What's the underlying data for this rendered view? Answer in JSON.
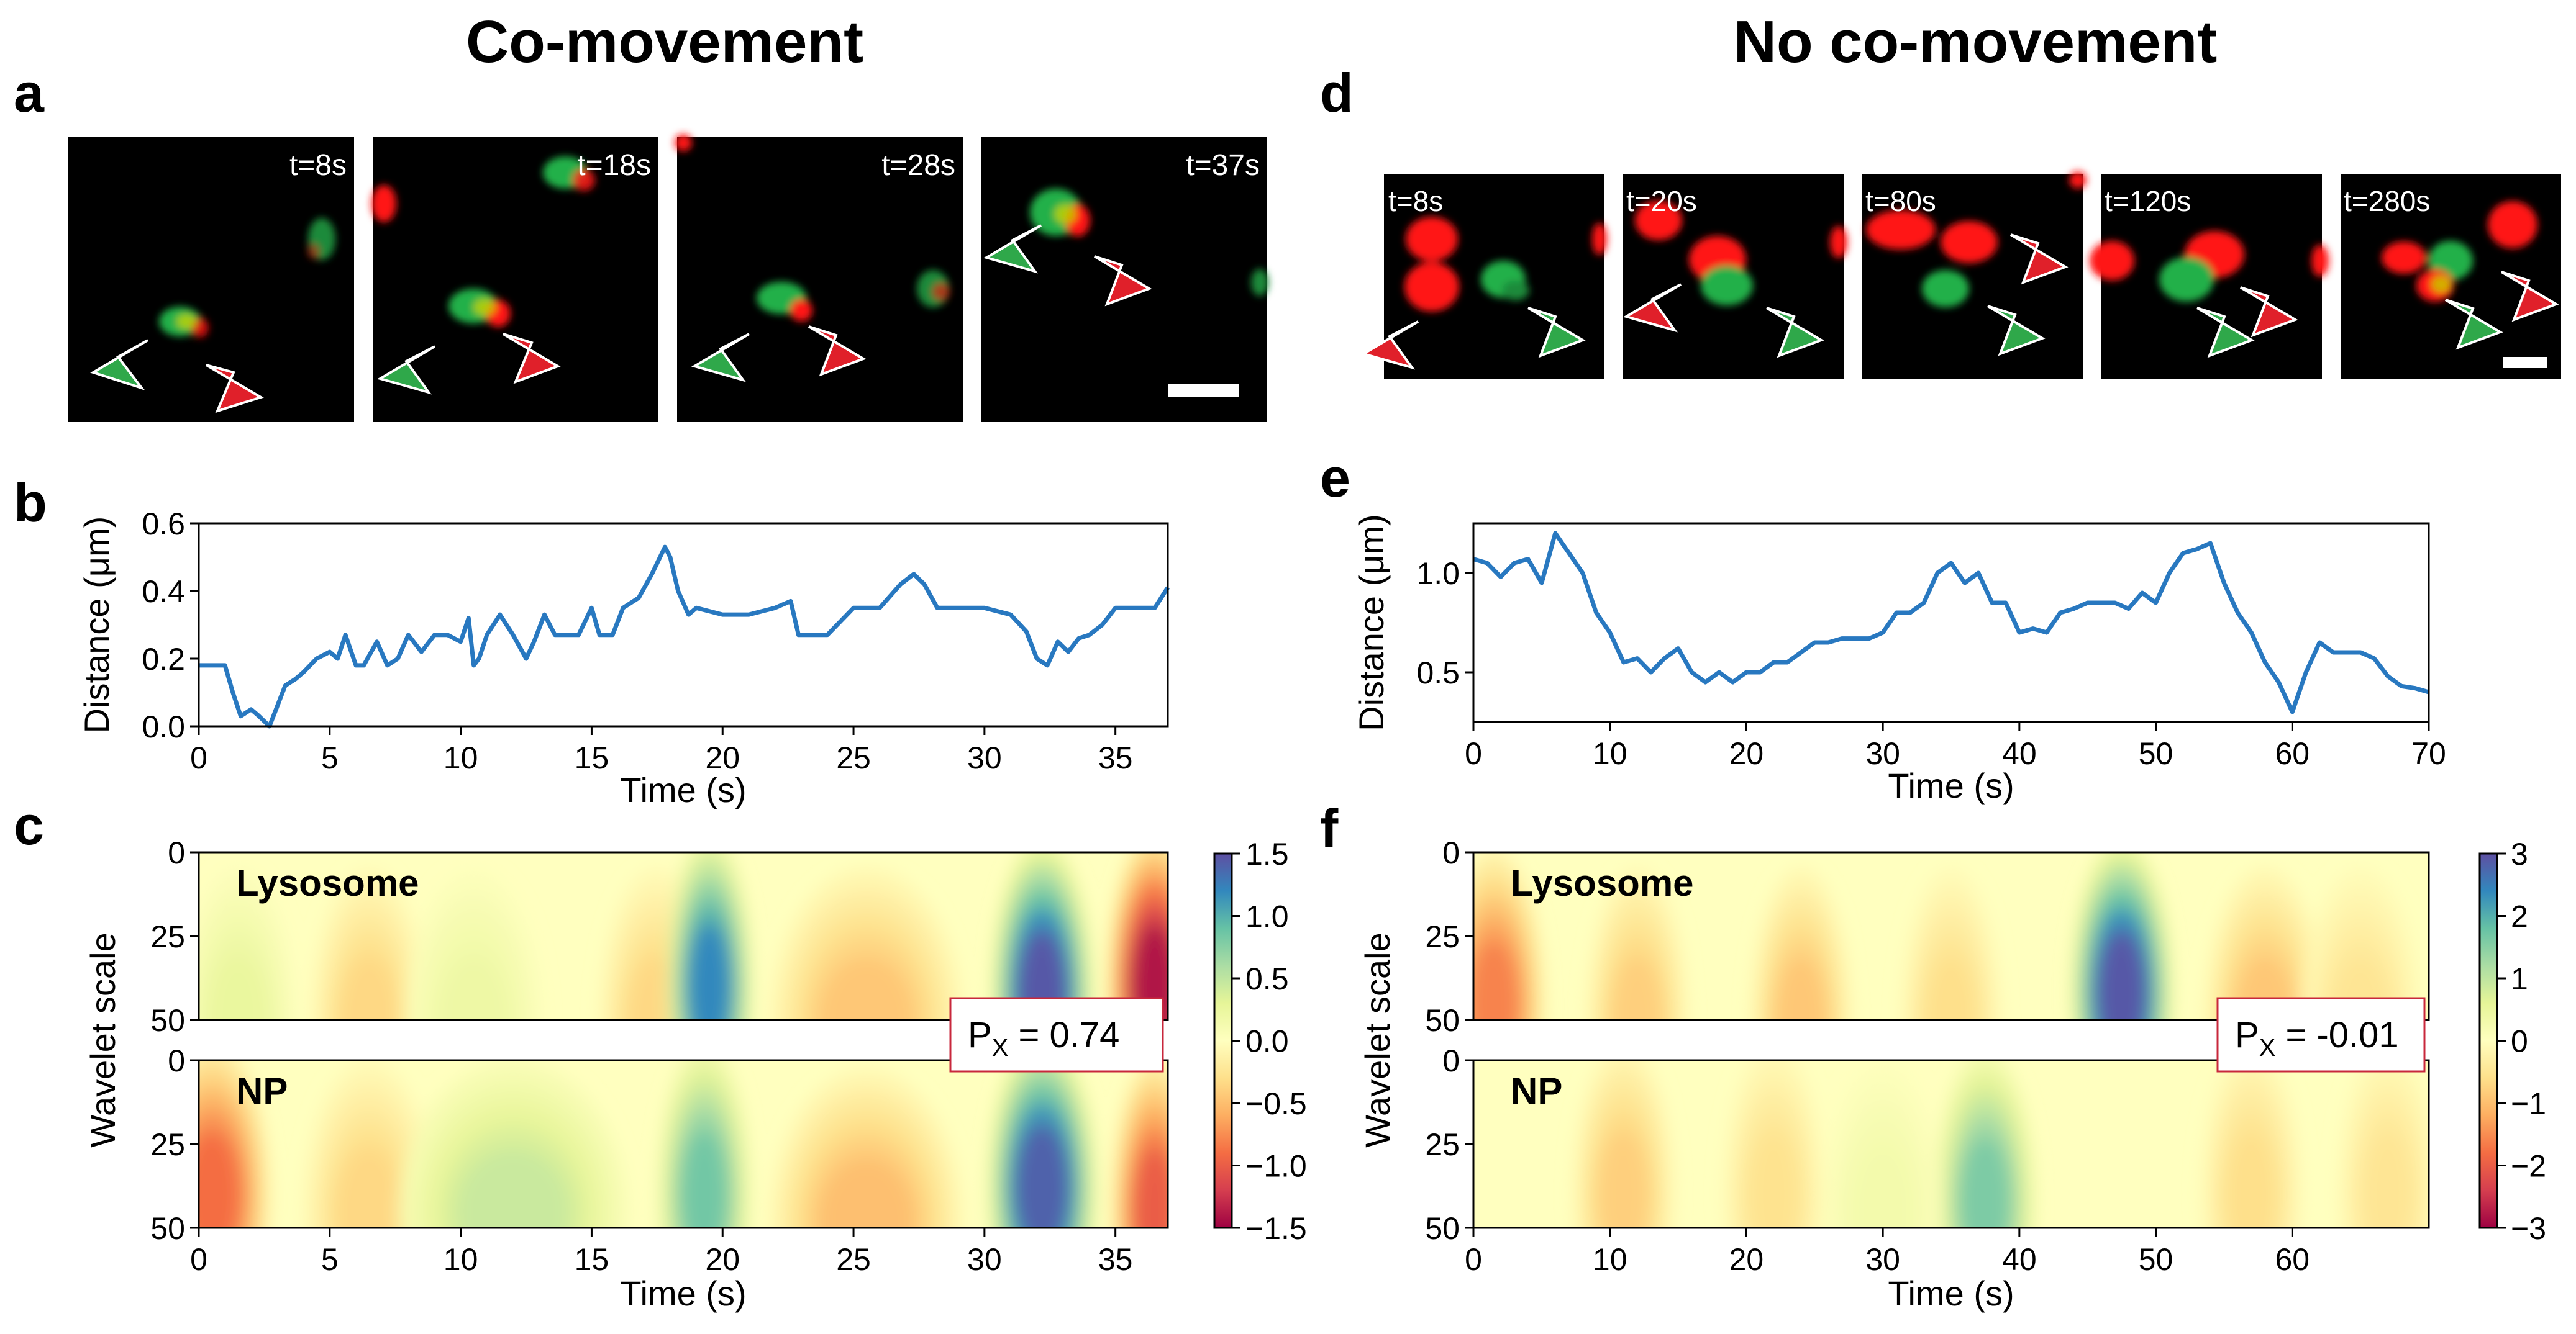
{
  "colors": {
    "line": "#2878c0",
    "green": "#22b04a",
    "red": "#ff1414",
    "micro_bg": "#000000",
    "px_box_border": "#c8283c"
  },
  "titles": {
    "left": "Co-movement",
    "right": "No co-movement"
  },
  "panel_labels": {
    "a": "a",
    "b": "b",
    "c": "c",
    "d": "d",
    "e": "e",
    "f": "f"
  },
  "micrographs": {
    "a": [
      {
        "label": "t=8s"
      },
      {
        "label": "t=18s"
      },
      {
        "label": "t=28s"
      },
      {
        "label": "t=37s"
      }
    ],
    "d": [
      {
        "label": "t=8s"
      },
      {
        "label": "t=20s"
      },
      {
        "label": "t=80s"
      },
      {
        "label": "t=120s"
      },
      {
        "label": "t=280s"
      }
    ]
  },
  "chart_data": [
    {
      "id": "b",
      "type": "line",
      "title": "",
      "xlabel": "Time (s)",
      "ylabel": "Distance (μm)",
      "xlim": [
        0,
        37
      ],
      "ylim": [
        0,
        0.6
      ],
      "xticks": [
        0,
        5,
        10,
        15,
        20,
        25,
        30,
        35
      ],
      "yticks": [
        0.0,
        0.2,
        0.4,
        0.6
      ],
      "ytick_labels": [
        "0.0",
        "0.2",
        "0.4",
        "0.6"
      ],
      "series": [
        {
          "name": "distance",
          "x": [
            0,
            1,
            1.3,
            1.6,
            2,
            2.3,
            2.7,
            3,
            3.3,
            3.7,
            4,
            4.5,
            5,
            5.3,
            5.6,
            6,
            6.3,
            6.8,
            7.2,
            7.6,
            8,
            8.5,
            9,
            9.5,
            10,
            10.3,
            10.5,
            10.7,
            11,
            11.5,
            12,
            12.5,
            12.8,
            13.2,
            13.6,
            14,
            14.5,
            15,
            15.3,
            15.8,
            16.2,
            16.8,
            17.3,
            17.8,
            18,
            18.3,
            18.7,
            19,
            20,
            21,
            22,
            22.6,
            22.9,
            23.3,
            24,
            25,
            26,
            26.8,
            27.3,
            27.7,
            28.2,
            29,
            30,
            31,
            31.6,
            32,
            32.4,
            32.8,
            33.2,
            33.6,
            34,
            34.5,
            35,
            35.5,
            36,
            36.5,
            37
          ],
          "values": [
            0.18,
            0.18,
            0.1,
            0.03,
            0.05,
            0.03,
            0.0,
            0.06,
            0.12,
            0.14,
            0.16,
            0.2,
            0.22,
            0.2,
            0.27,
            0.18,
            0.18,
            0.25,
            0.18,
            0.2,
            0.27,
            0.22,
            0.27,
            0.27,
            0.25,
            0.32,
            0.18,
            0.2,
            0.27,
            0.33,
            0.27,
            0.2,
            0.25,
            0.33,
            0.27,
            0.27,
            0.27,
            0.35,
            0.27,
            0.27,
            0.35,
            0.38,
            0.45,
            0.53,
            0.5,
            0.4,
            0.33,
            0.35,
            0.33,
            0.33,
            0.35,
            0.37,
            0.27,
            0.27,
            0.27,
            0.35,
            0.35,
            0.42,
            0.45,
            0.42,
            0.35,
            0.35,
            0.35,
            0.33,
            0.28,
            0.2,
            0.18,
            0.25,
            0.22,
            0.26,
            0.27,
            0.3,
            0.35,
            0.35,
            0.35,
            0.35,
            0.41
          ]
        }
      ]
    },
    {
      "id": "e",
      "type": "line",
      "title": "",
      "xlabel": "Time (s)",
      "ylabel": "Distance (μm)",
      "xlim": [
        0,
        70
      ],
      "ylim": [
        0.25,
        1.25
      ],
      "xticks": [
        0,
        10,
        20,
        30,
        40,
        50,
        60,
        70
      ],
      "yticks": [
        0.5,
        1.0
      ],
      "ytick_labels": [
        "0.5",
        "1.0"
      ],
      "series": [
        {
          "name": "distance",
          "x": [
            0,
            1,
            2,
            3,
            4,
            5,
            6,
            7,
            8,
            9,
            10,
            11,
            12,
            13,
            14,
            15,
            16,
            17,
            18,
            19,
            20,
            21,
            22,
            23,
            24,
            25,
            26,
            27,
            28,
            29,
            30,
            31,
            32,
            33,
            34,
            35,
            36,
            37,
            38,
            39,
            40,
            41,
            42,
            43,
            44,
            45,
            46,
            47,
            48,
            49,
            50,
            51,
            52,
            53,
            54,
            55,
            56,
            57,
            58,
            59,
            60,
            61,
            62,
            63,
            64,
            65,
            66,
            67,
            68,
            69,
            70
          ],
          "values": [
            1.07,
            1.05,
            0.98,
            1.05,
            1.07,
            0.95,
            1.2,
            1.1,
            1.0,
            0.8,
            0.7,
            0.55,
            0.57,
            0.5,
            0.57,
            0.62,
            0.5,
            0.45,
            0.5,
            0.45,
            0.5,
            0.5,
            0.55,
            0.55,
            0.6,
            0.65,
            0.65,
            0.67,
            0.67,
            0.67,
            0.7,
            0.8,
            0.8,
            0.85,
            1.0,
            1.05,
            0.95,
            1.0,
            0.85,
            0.85,
            0.7,
            0.72,
            0.7,
            0.8,
            0.82,
            0.85,
            0.85,
            0.85,
            0.82,
            0.9,
            0.85,
            1.0,
            1.1,
            1.12,
            1.15,
            0.95,
            0.8,
            0.7,
            0.55,
            0.45,
            0.3,
            0.5,
            0.65,
            0.6,
            0.6,
            0.6,
            0.57,
            0.48,
            0.43,
            0.42,
            0.4
          ]
        }
      ]
    },
    {
      "id": "c",
      "type": "heatmap",
      "xlabel": "Time (s)",
      "ylabel": "Wavelet scale",
      "xlim": [
        0,
        37
      ],
      "xticks": [
        0,
        5,
        10,
        15,
        20,
        25,
        30,
        35
      ],
      "yticks": [
        0,
        25,
        50
      ],
      "rows": [
        {
          "label": "Lysosome",
          "blobs": [
            {
              "t": 6.5,
              "s": 50,
              "v": -0.35,
              "w": 1.5
            },
            {
              "t": 17.5,
              "s": 50,
              "v": -0.35,
              "w": 1.5
            },
            {
              "t": 19.5,
              "s": 40,
              "v": 1.2,
              "w": 1.1
            },
            {
              "t": 25.5,
              "s": 50,
              "v": -0.45,
              "w": 2.5
            },
            {
              "t": 32.2,
              "s": 42,
              "v": 1.45,
              "w": 1.3
            },
            {
              "t": 36.5,
              "s": 40,
              "v": -1.4,
              "w": 1.2
            },
            {
              "t": 1.5,
              "s": 50,
              "v": 0.25,
              "w": 1.5
            },
            {
              "t": 10.5,
              "s": 50,
              "v": 0.2,
              "w": 1.8
            }
          ]
        },
        {
          "label": "NP",
          "blobs": [
            {
              "t": 0.5,
              "s": 40,
              "v": -0.9,
              "w": 1.5
            },
            {
              "t": 6.5,
              "s": 45,
              "v": -0.35,
              "w": 1.7
            },
            {
              "t": 12,
              "s": 45,
              "v": 0.45,
              "w": 3
            },
            {
              "t": 19.3,
              "s": 40,
              "v": 0.85,
              "w": 1.2
            },
            {
              "t": 25.5,
              "s": 48,
              "v": -0.5,
              "w": 2.5
            },
            {
              "t": 32.2,
              "s": 38,
              "v": 1.4,
              "w": 1.4
            },
            {
              "t": 36.5,
              "s": 45,
              "v": -1.0,
              "w": 1.1
            }
          ]
        }
      ],
      "colorbar": {
        "min": -1.5,
        "max": 1.5,
        "ticks": [
          1.5,
          1.0,
          0.5,
          0.0,
          -0.5,
          -1.0,
          -1.5
        ],
        "tick_labels": [
          "1.5",
          "1.0",
          "0.5",
          "0.0",
          "−0.5",
          "−1.0",
          "−1.5"
        ]
      },
      "annotation": {
        "base": "P",
        "sub": "X",
        "text": " = 0.74"
      }
    },
    {
      "id": "f",
      "type": "heatmap",
      "xlabel": "Time (s)",
      "ylabel": "Wavelet scale",
      "xlim": [
        0,
        70
      ],
      "xticks": [
        0,
        10,
        20,
        30,
        40,
        50,
        60
      ],
      "yticks": [
        0,
        25,
        50
      ],
      "rows": [
        {
          "label": "Lysosome",
          "blobs": [
            {
              "t": 1.5,
              "s": 45,
              "v": -1.6,
              "w": 2.5
            },
            {
              "t": 12,
              "s": 50,
              "v": -0.8,
              "w": 2.5
            },
            {
              "t": 24,
              "s": 50,
              "v": -0.9,
              "w": 2.5
            },
            {
              "t": 35,
              "s": 50,
              "v": -0.6,
              "w": 2.5
            },
            {
              "t": 47.5,
              "s": 42,
              "v": 2.9,
              "w": 2.5
            },
            {
              "t": 58,
              "s": 50,
              "v": -0.9,
              "w": 3
            },
            {
              "t": 65,
              "s": 50,
              "v": -0.5,
              "w": 3
            }
          ]
        },
        {
          "label": "NP",
          "blobs": [
            {
              "t": 11,
              "s": 40,
              "v": -0.8,
              "w": 2.5
            },
            {
              "t": 22,
              "s": 40,
              "v": -0.55,
              "w": 2.5
            },
            {
              "t": 37.5,
              "s": 42,
              "v": 1.6,
              "w": 2.5
            },
            {
              "t": 57,
              "s": 40,
              "v": -0.6,
              "w": 2.5
            },
            {
              "t": 67,
              "s": 40,
              "v": -0.5,
              "w": 2.5
            },
            {
              "t": 30,
              "s": 45,
              "v": 0.3,
              "w": 3
            }
          ]
        }
      ],
      "colorbar": {
        "min": -3,
        "max": 3,
        "ticks": [
          3,
          2,
          1,
          0,
          -1,
          -2,
          -3
        ],
        "tick_labels": [
          "3",
          "2",
          "1",
          "0",
          "−1",
          "−2",
          "−3"
        ]
      },
      "annotation": {
        "base": "P",
        "sub": "X",
        "text": " = -0.01"
      }
    }
  ]
}
